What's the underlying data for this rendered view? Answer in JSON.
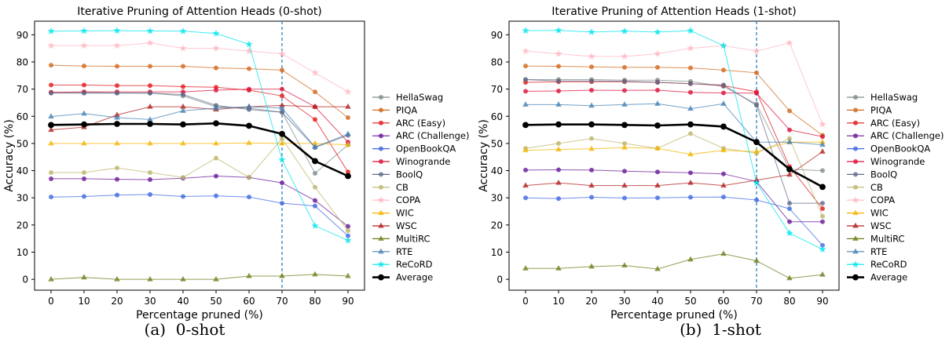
{
  "captions": [
    "(a)  0-shot",
    "(b)  1-shot"
  ],
  "chart_data": [
    {
      "type": "line",
      "title": "Iterative Pruning of Attention Heads (0-shot)",
      "xlabel": "Percentage pruned (%)",
      "ylabel": "Accuracy (%)",
      "x": [
        0,
        10,
        20,
        30,
        40,
        50,
        60,
        70,
        80,
        90
      ],
      "xticks": [
        0,
        10,
        20,
        30,
        40,
        50,
        60,
        70,
        80,
        90
      ],
      "yticks": [
        0,
        10,
        20,
        30,
        40,
        50,
        60,
        70,
        80,
        90
      ],
      "xlim": [
        -5,
        95
      ],
      "ylim": [
        -4,
        95
      ],
      "vline": 70,
      "grid": false,
      "legend_position": "right",
      "series": [
        {
          "name": "HellaSwag",
          "color": "#7f8c8d",
          "marker": "circle",
          "values": [
            68.8,
            68.8,
            68.6,
            68.5,
            67.5,
            63.5,
            63.0,
            61.5,
            39.0,
            49.5
          ]
        },
        {
          "name": "PIQA",
          "color": "#d2691e",
          "marker": "circle",
          "values": [
            78.8,
            78.5,
            78.4,
            78.4,
            78.4,
            77.8,
            77.5,
            77.0,
            69.0,
            59.5
          ]
        },
        {
          "name": "ARC (Easy)",
          "color": "#e31a1c",
          "marker": "circle",
          "values": [
            71.5,
            71.5,
            71.3,
            71.3,
            70.9,
            70.7,
            69.6,
            67.5,
            58.8,
            39.5
          ]
        },
        {
          "name": "ARC (Challenge)",
          "color": "#6a1b9a",
          "marker": "circle",
          "values": [
            37.0,
            37.0,
            36.8,
            36.7,
            37.2,
            38.0,
            37.5,
            35.5,
            29.0,
            19.5
          ]
        },
        {
          "name": "OpenBookQA",
          "color": "#4169e1",
          "marker": "circle",
          "values": [
            30.3,
            30.5,
            31.0,
            31.2,
            30.5,
            30.7,
            30.3,
            28.0,
            27.0,
            16.0
          ]
        },
        {
          "name": "Winogrande",
          "color": "#dc143c",
          "marker": "circle",
          "values": [
            68.8,
            69.0,
            69.0,
            69.0,
            69.0,
            69.6,
            70.0,
            70.0,
            63.5,
            50.5
          ]
        },
        {
          "name": "BoolQ",
          "color": "#5f6b8a",
          "marker": "circle",
          "values": [
            68.5,
            68.5,
            68.5,
            68.5,
            68.0,
            64.0,
            62.5,
            61.5,
            48.5,
            53.0
          ]
        },
        {
          "name": "CB",
          "color": "#bdb76b",
          "marker": "circle",
          "values": [
            39.3,
            39.3,
            41.0,
            39.3,
            37.5,
            44.6,
            37.5,
            51.8,
            33.9,
            17.9
          ]
        },
        {
          "name": "COPA",
          "color": "#ffb6c1",
          "marker": "star",
          "values": [
            86.0,
            86.0,
            86.0,
            87.0,
            85.0,
            85.0,
            84.0,
            83.0,
            76.0,
            69.0
          ]
        },
        {
          "name": "WIC",
          "color": "#f4b400",
          "marker": "triangle",
          "values": [
            50.0,
            50.0,
            50.0,
            50.0,
            50.0,
            50.0,
            50.2,
            50.0,
            50.0,
            49.5
          ]
        },
        {
          "name": "WSC",
          "color": "#b22222",
          "marker": "triangle",
          "values": [
            55.0,
            56.0,
            60.5,
            63.5,
            63.5,
            62.5,
            63.5,
            64.0,
            63.5,
            63.5
          ]
        },
        {
          "name": "MultiRC",
          "color": "#6b7f1a",
          "marker": "triangle",
          "values": [
            0.0,
            0.7,
            0.0,
            0.0,
            0.0,
            0.0,
            1.2,
            1.2,
            1.8,
            1.2
          ]
        },
        {
          "name": "RTE",
          "color": "#4682b4",
          "marker": "triangle",
          "values": [
            59.9,
            61.0,
            59.5,
            58.8,
            62.0,
            63.0,
            63.5,
            63.0,
            48.7,
            53.5
          ]
        },
        {
          "name": "ReCoRD",
          "color": "#00e5ee",
          "marker": "star",
          "values": [
            91.3,
            91.4,
            91.5,
            91.4,
            91.3,
            90.5,
            86.5,
            44.0,
            19.7,
            14.3
          ]
        },
        {
          "name": "Average",
          "color": "#000000",
          "marker": "circle",
          "bold": true,
          "values": [
            56.8,
            57.0,
            57.2,
            57.2,
            57.0,
            57.4,
            56.5,
            53.5,
            43.5,
            38.0
          ]
        }
      ]
    },
    {
      "type": "line",
      "title": "Iterative Pruning of Attention Heads (1-shot)",
      "xlabel": "Percentage pruned (%)",
      "ylabel": "Accuracy (%)",
      "x": [
        0,
        10,
        20,
        30,
        40,
        50,
        60,
        70,
        80,
        90
      ],
      "xticks": [
        0,
        10,
        20,
        30,
        40,
        50,
        60,
        70,
        80,
        90
      ],
      "yticks": [
        0,
        10,
        20,
        30,
        40,
        50,
        60,
        70,
        80,
        90
      ],
      "xlim": [
        -5,
        95
      ],
      "ylim": [
        -4,
        95
      ],
      "vline": 70,
      "grid": false,
      "legend_position": "right",
      "series": [
        {
          "name": "HellaSwag",
          "color": "#7f8c8d",
          "marker": "circle",
          "values": [
            73.5,
            73.5,
            73.5,
            73.3,
            73.3,
            72.8,
            71.0,
            64.5,
            40.5,
            40.0
          ]
        },
        {
          "name": "PIQA",
          "color": "#d2691e",
          "marker": "circle",
          "values": [
            78.5,
            78.4,
            78.2,
            78.0,
            78.0,
            77.8,
            77.0,
            76.0,
            62.0,
            53.0
          ]
        },
        {
          "name": "ARC (Easy)",
          "color": "#e31a1c",
          "marker": "circle",
          "values": [
            72.5,
            72.7,
            72.7,
            72.7,
            72.5,
            72.0,
            71.3,
            69.0,
            41.5,
            26.0
          ]
        },
        {
          "name": "ARC (Challenge)",
          "color": "#6a1b9a",
          "marker": "circle",
          "values": [
            40.2,
            40.3,
            40.2,
            39.8,
            39.5,
            39.2,
            38.8,
            36.0,
            21.2,
            21.2
          ]
        },
        {
          "name": "OpenBookQA",
          "color": "#4169e1",
          "marker": "circle",
          "values": [
            30.0,
            29.7,
            30.2,
            29.9,
            30.0,
            30.2,
            30.3,
            29.2,
            26.0,
            12.5
          ]
        },
        {
          "name": "Winogrande",
          "color": "#dc143c",
          "marker": "circle",
          "values": [
            69.2,
            69.3,
            69.6,
            69.5,
            69.6,
            68.8,
            68.6,
            68.5,
            55.0,
            52.5
          ]
        },
        {
          "name": "BoolQ",
          "color": "#5f6b8a",
          "marker": "circle",
          "values": [
            73.5,
            73.0,
            73.0,
            72.9,
            72.5,
            72.0,
            71.5,
            64.0,
            28.0,
            28.0
          ]
        },
        {
          "name": "CB",
          "color": "#bdb76b",
          "marker": "circle",
          "values": [
            48.2,
            50.0,
            51.8,
            50.0,
            48.2,
            53.6,
            48.2,
            46.4,
            51.8,
            23.2
          ]
        },
        {
          "name": "COPA",
          "color": "#ffb6c1",
          "marker": "star",
          "values": [
            84.0,
            83.0,
            82.0,
            82.0,
            83.0,
            85.0,
            86.0,
            84.0,
            87.0,
            57.0
          ]
        },
        {
          "name": "WIC",
          "color": "#f4b400",
          "marker": "triangle",
          "values": [
            47.5,
            47.8,
            48.0,
            48.5,
            48.2,
            46.0,
            47.5,
            47.0,
            50.5,
            50.5
          ]
        },
        {
          "name": "WSC",
          "color": "#b22222",
          "marker": "triangle",
          "values": [
            34.5,
            35.5,
            34.5,
            34.5,
            34.5,
            35.5,
            34.5,
            36.5,
            38.5,
            47.0
          ]
        },
        {
          "name": "MultiRC",
          "color": "#6b7f1a",
          "marker": "triangle",
          "values": [
            4.0,
            4.0,
            4.7,
            5.1,
            3.8,
            7.3,
            9.4,
            6.8,
            0.4,
            1.7
          ]
        },
        {
          "name": "RTE",
          "color": "#4682b4",
          "marker": "triangle",
          "values": [
            64.3,
            64.3,
            63.9,
            64.3,
            64.6,
            62.8,
            64.6,
            50.5,
            50.5,
            49.5
          ]
        },
        {
          "name": "ReCoRD",
          "color": "#00e5ee",
          "marker": "star",
          "values": [
            91.5,
            91.6,
            91.0,
            91.3,
            91.0,
            91.5,
            86.0,
            35.5,
            17.0,
            11.0
          ]
        },
        {
          "name": "Average",
          "color": "#000000",
          "marker": "circle",
          "bold": true,
          "values": [
            56.8,
            57.0,
            57.0,
            56.8,
            56.6,
            57.0,
            56.2,
            50.5,
            40.5,
            34.0
          ]
        }
      ]
    }
  ]
}
